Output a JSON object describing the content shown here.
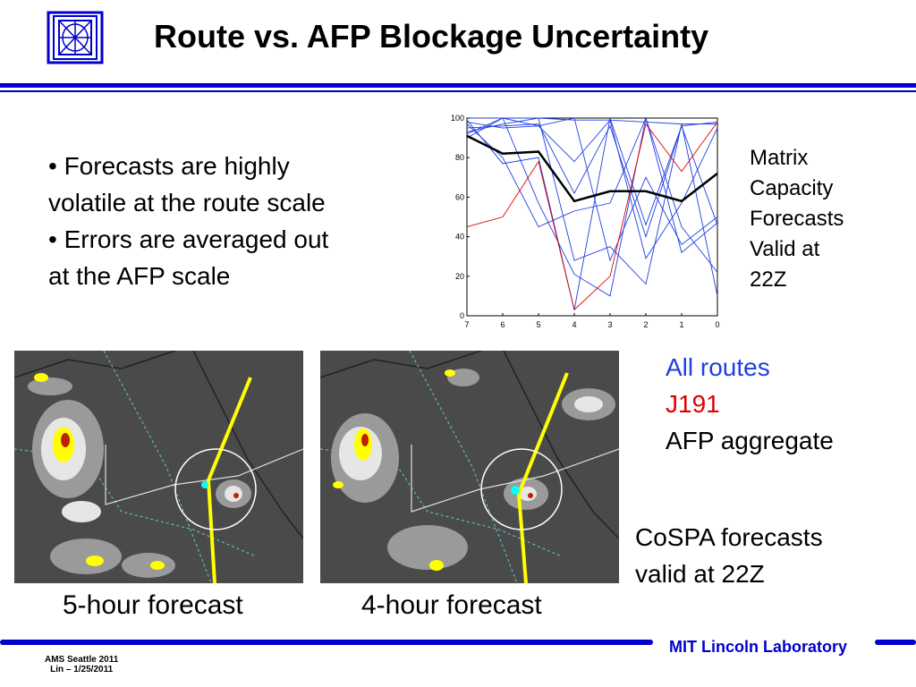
{
  "slide": {
    "title": "Route vs. AFP Blockage Uncertainty",
    "bullets": [
      "• Forecasts are highly",
      "volatile at the route scale",
      "• Errors are averaged out",
      "at the AFP scale"
    ],
    "chart_caption": [
      "Matrix",
      "Capacity",
      "Forecasts",
      "Valid at",
      "22Z"
    ],
    "legend": {
      "all_routes": "All routes",
      "j191": "J191",
      "afp": "AFP aggregate"
    },
    "cospa_caption": [
      "CoSPA forecasts",
      "valid at 22Z"
    ],
    "panel_captions": [
      "5-hour forecast",
      "4-hour forecast"
    ],
    "footer": {
      "lab": "MIT Lincoln Laboratory",
      "event": "AMS Seattle 2011",
      "author": "Lin – 1/25/2011"
    }
  },
  "colors": {
    "accent": "#0000cc",
    "all_routes": "#1f3fe0",
    "j191": "#e00000",
    "afp": "#000000",
    "route_overlay": "#ffff00"
  },
  "chart_data": {
    "type": "line",
    "x": [
      7,
      6,
      5,
      4,
      3,
      2,
      1,
      0
    ],
    "xlim": [
      7,
      0
    ],
    "ylim": [
      0,
      100
    ],
    "x_ticks": [
      "7",
      "6",
      "5",
      "4",
      "3",
      "2",
      "1",
      "0"
    ],
    "y_ticks": [
      "0",
      "20",
      "40",
      "60",
      "80",
      "100"
    ],
    "title": "",
    "xlabel": "",
    "ylabel": "",
    "series": [
      {
        "role": "afp",
        "values": [
          91,
          82,
          83,
          58,
          63,
          63,
          58,
          72
        ]
      },
      {
        "role": "j191",
        "values": [
          45,
          50,
          78,
          3,
          20,
          97,
          73,
          98
        ]
      },
      {
        "role": "route",
        "values": [
          100,
          100,
          100,
          99,
          99,
          98,
          97,
          97
        ]
      },
      {
        "role": "route",
        "values": [
          99,
          77,
          80,
          3,
          100,
          46,
          96,
          46
        ]
      },
      {
        "role": "route",
        "values": [
          98,
          95,
          96,
          100,
          28,
          70,
          36,
          50
        ]
      },
      {
        "role": "route",
        "values": [
          97,
          80,
          45,
          53,
          57,
          100,
          45,
          22
        ]
      },
      {
        "role": "route",
        "values": [
          95,
          96,
          97,
          62,
          96,
          40,
          96,
          98
        ]
      },
      {
        "role": "route",
        "values": [
          93,
          97,
          100,
          28,
          35,
          16,
          97,
          10
        ]
      },
      {
        "role": "route",
        "values": [
          92,
          100,
          57,
          21,
          10,
          100,
          32,
          47
        ]
      },
      {
        "role": "route",
        "values": [
          90,
          100,
          96,
          78,
          99,
          29,
          57,
          95
        ]
      }
    ]
  }
}
